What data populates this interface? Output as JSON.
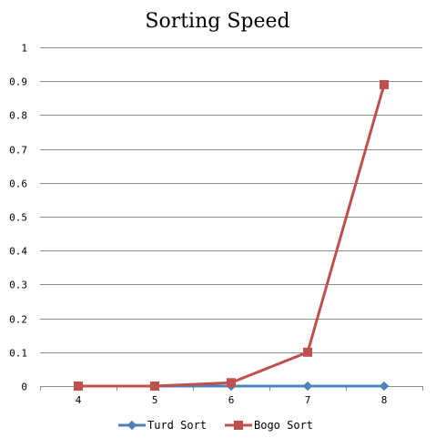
{
  "chart_data": {
    "type": "line",
    "title": "Sorting Speed",
    "xlabel": "",
    "ylabel": "",
    "categories": [
      "4",
      "5",
      "6",
      "7",
      "8"
    ],
    "ylim": [
      0,
      1
    ],
    "yticks": [
      "0",
      "0.1",
      "0.2",
      "0.3",
      "0.4",
      "0.5",
      "0.6",
      "0.7",
      "0.8",
      "0.9",
      "1"
    ],
    "grid": true,
    "legend": "bottom",
    "series": [
      {
        "name": "Turd Sort",
        "values": [
          0,
          0,
          0,
          0,
          0
        ],
        "color": "#4f81bd",
        "marker": "diamond"
      },
      {
        "name": "Bogo Sort",
        "values": [
          0,
          0,
          0.01,
          0.1,
          0.89
        ],
        "color": "#c0504d",
        "marker": "square"
      }
    ]
  }
}
